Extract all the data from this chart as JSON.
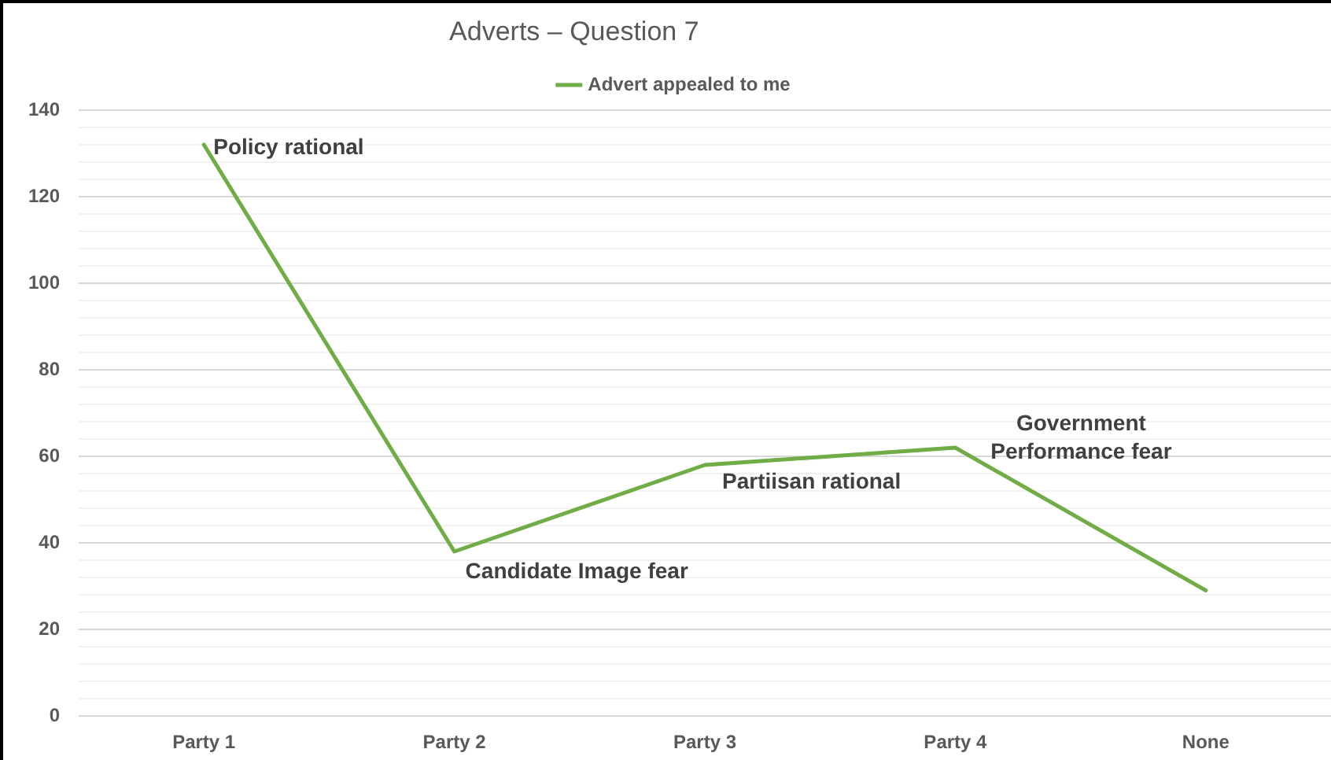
{
  "chart_data": {
    "type": "line",
    "title": "Adverts – Question 7",
    "categories": [
      "Party 1",
      "Party 2",
      "Party 3",
      "Party 4",
      "None"
    ],
    "series": [
      {
        "name": "Advert appealed to me",
        "color": "#70ad47",
        "values": [
          132,
          38,
          58,
          62,
          29
        ]
      }
    ],
    "ylim": [
      0,
      140
    ],
    "yticks": [
      0,
      {
        "value": 4,
        "label": null
      },
      {
        "value": 8,
        "label": null
      },
      {
        "value": 12,
        "label": null
      },
      {
        "value": 16,
        "label": null
      },
      20,
      {
        "value": 24,
        "label": null
      },
      {
        "value": 28,
        "label": null
      },
      {
        "value": 32,
        "label": null
      },
      {
        "value": 36,
        "label": null
      },
      40,
      {
        "value": 44,
        "label": null
      },
      {
        "value": 48,
        "label": null
      },
      {
        "value": 52,
        "label": null
      },
      {
        "value": 56,
        "label": null
      },
      60,
      {
        "value": 64,
        "label": null
      },
      {
        "value": 68,
        "label": null
      },
      {
        "value": 72,
        "label": null
      },
      {
        "value": 76,
        "label": null
      },
      80,
      {
        "value": 84,
        "label": null
      },
      {
        "value": 88,
        "label": null
      },
      {
        "value": 92,
        "label": null
      },
      {
        "value": 96,
        "label": null
      },
      100,
      {
        "value": 104,
        "label": null
      },
      {
        "value": 108,
        "label": null
      },
      {
        "value": 112,
        "label": null
      },
      {
        "value": 116,
        "label": null
      },
      120,
      {
        "value": 124,
        "label": null
      },
      {
        "value": 128,
        "label": null
      },
      {
        "value": 132,
        "label": null
      },
      {
        "value": 136,
        "label": null
      },
      140
    ],
    "grid": true,
    "legend": "top",
    "marker": "none",
    "line_style": "solid",
    "annotations": [
      {
        "text": "Policy rational",
        "x": "Party 1",
        "y": 132
      },
      {
        "text": "Candidate Image fear",
        "x": "Party 2",
        "y": 38
      },
      {
        "text": "Partiisan rational",
        "x": "Party 3",
        "y": 58
      },
      {
        "text": "Government Performance fear",
        "x": "Party 4",
        "y": 62
      }
    ]
  }
}
